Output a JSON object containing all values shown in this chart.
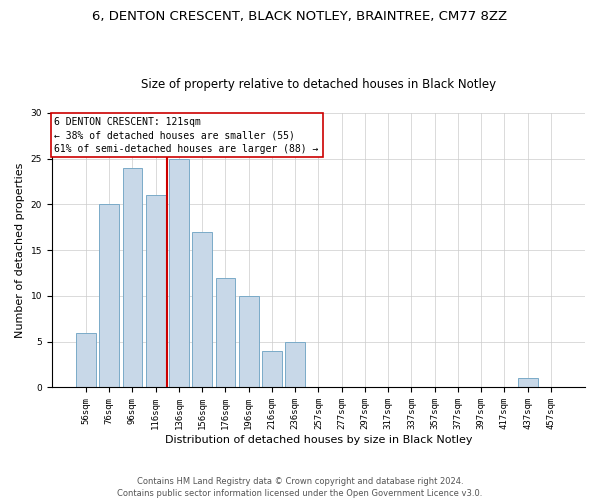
{
  "title1": "6, DENTON CRESCENT, BLACK NOTLEY, BRAINTREE, CM77 8ZZ",
  "title2": "Size of property relative to detached houses in Black Notley",
  "xlabel": "Distribution of detached houses by size in Black Notley",
  "ylabel": "Number of detached properties",
  "bar_labels": [
    "56sqm",
    "76sqm",
    "96sqm",
    "116sqm",
    "136sqm",
    "156sqm",
    "176sqm",
    "196sqm",
    "216sqm",
    "236sqm",
    "257sqm",
    "277sqm",
    "297sqm",
    "317sqm",
    "337sqm",
    "357sqm",
    "377sqm",
    "397sqm",
    "417sqm",
    "437sqm",
    "457sqm"
  ],
  "bar_values": [
    6,
    20,
    24,
    21,
    25,
    17,
    12,
    10,
    4,
    5,
    0,
    0,
    0,
    0,
    0,
    0,
    0,
    0,
    0,
    1,
    0
  ],
  "bar_color": "#c8d8e8",
  "bar_edgecolor": "#7aaac8",
  "vline_x": 3.5,
  "vline_color": "#cc0000",
  "annotation_text": "6 DENTON CRESCENT: 121sqm\n← 38% of detached houses are smaller (55)\n61% of semi-detached houses are larger (88) →",
  "annotation_fontsize": 7.0,
  "box_edgecolor": "#cc0000",
  "ylim": [
    0,
    30
  ],
  "yticks": [
    0,
    5,
    10,
    15,
    20,
    25,
    30
  ],
  "footnote": "Contains HM Land Registry data © Crown copyright and database right 2024.\nContains public sector information licensed under the Open Government Licence v3.0.",
  "title1_fontsize": 9.5,
  "title2_fontsize": 8.5,
  "xlabel_fontsize": 8.0,
  "ylabel_fontsize": 8.0,
  "tick_labelsize": 6.5,
  "footnote_fontsize": 6.0
}
